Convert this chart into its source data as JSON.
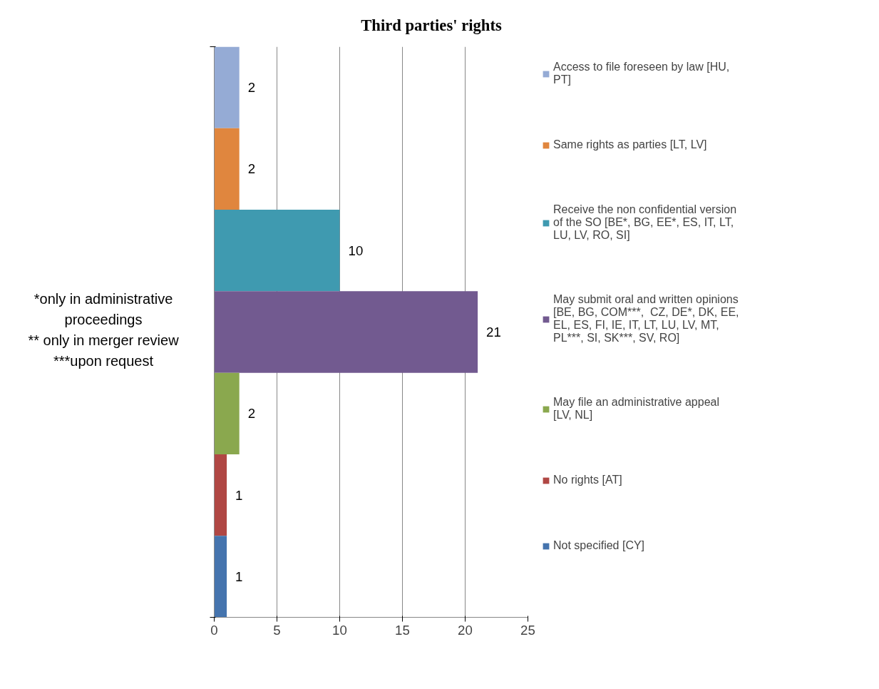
{
  "chart_data": {
    "type": "bar",
    "orientation": "horizontal",
    "title": "Third parties' rights",
    "categories": [
      null
    ],
    "series": [
      {
        "name": "Access to file foreseen by law [HU, PT]",
        "color": "#95abd5",
        "values": [
          2
        ]
      },
      {
        "name": "Same rights as parties [LT, LV]",
        "color": "#e0863e",
        "values": [
          2
        ]
      },
      {
        "name": "Receive the non confidential version of the SO [BE*, BG, EE*, ES, IT, LT, LU, LV, RO, SI]",
        "color": "#3f9ab0",
        "values": [
          10
        ]
      },
      {
        "name": "May submit oral and written opinions [BE, BG, COM***,  CZ, DE*, DK, EE, EL, ES, FI, IE, IT, LT, LU, LV, MT, PL***, SI, SK***, SV, RO]",
        "color": "#725a90",
        "values": [
          21
        ]
      },
      {
        "name": "May file an administrative appeal [LV, NL]",
        "color": "#8aa84e",
        "values": [
          2
        ]
      },
      {
        "name": "No rights [AT]",
        "color": "#b04744",
        "values": [
          1
        ]
      },
      {
        "name": "Not specified [CY]",
        "color": "#4574ae",
        "values": [
          1
        ]
      }
    ],
    "xlim": [
      0,
      25
    ],
    "xticks": [
      0,
      5,
      10,
      15,
      20,
      25
    ],
    "grid": "x",
    "legend": "right",
    "data_labels": true,
    "tick_labels": "x",
    "annotations": [
      "*only in administrative proceedings\n** only in merger review\n***upon request"
    ]
  }
}
